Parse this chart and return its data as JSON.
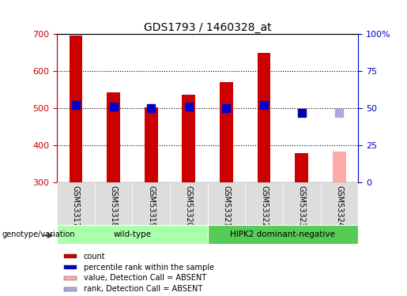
{
  "title": "GDS1793 / 1460328_at",
  "samples": [
    "GSM53317",
    "GSM53318",
    "GSM53319",
    "GSM53320",
    "GSM53321",
    "GSM53322",
    "GSM53323",
    "GSM53324"
  ],
  "bar_values": [
    697,
    543,
    501,
    535,
    571,
    650,
    379,
    null
  ],
  "bar_color": "#cc0000",
  "absent_bar_value": 383,
  "absent_bar_color": "#ffaaaa",
  "absent_bar_index": 7,
  "rank_values": [
    52,
    51,
    50,
    51,
    50,
    52,
    null,
    null
  ],
  "rank_color": "#0000cc",
  "rank_absent_value": 47,
  "rank_absent_index": 7,
  "rank_absent_color": "#aaaadd",
  "rank_dark_value": 47,
  "rank_dark_index": 6,
  "rank_dark_color": "#0000aa",
  "ylim_left": [
    300,
    700
  ],
  "ylim_right": [
    0,
    100
  ],
  "yticks_left": [
    300,
    400,
    500,
    600,
    700
  ],
  "yticks_right": [
    0,
    25,
    50,
    75,
    100
  ],
  "ytick_labels_right": [
    "0",
    "25",
    "50",
    "75",
    "100%"
  ],
  "bar_width": 0.35,
  "rank_marker_size": 55,
  "groups": [
    {
      "label": "wild-type",
      "start": 0,
      "end": 4,
      "color": "#aaffaa"
    },
    {
      "label": "HIPK2 dominant-negative",
      "start": 4,
      "end": 8,
      "color": "#55cc55"
    }
  ],
  "legend_items": [
    {
      "label": "count",
      "color": "#cc0000"
    },
    {
      "label": "percentile rank within the sample",
      "color": "#0000cc"
    },
    {
      "label": "value, Detection Call = ABSENT",
      "color": "#ffaaaa"
    },
    {
      "label": "rank, Detection Call = ABSENT",
      "color": "#aaaadd"
    }
  ],
  "left_axis_color": "#cc0000",
  "right_axis_color": "#0000cc",
  "genotype_label": "genotype/variation"
}
